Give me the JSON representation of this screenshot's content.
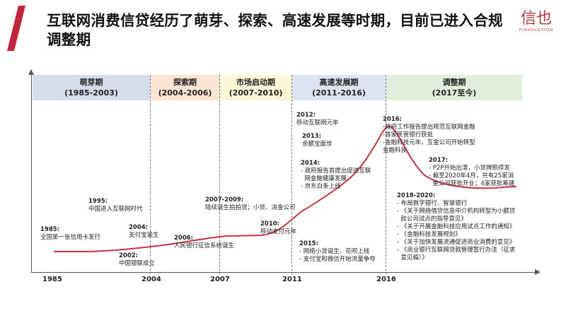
{
  "title": "互联网消费信贷经历了萌芽、探索、高速发展等时期，目前已进入合规调整期",
  "logo": {
    "glyph": "信也",
    "sub": "FINVOLUTION"
  },
  "colors": {
    "accent": "#c0273b",
    "curve": "#c2344a",
    "phase1": "#d4dde9",
    "phase2": "#fbe4d2",
    "phase3": "#fdf5d8",
    "phase4": "#dde3f0",
    "phase5": "#e0eedb"
  },
  "phases": [
    {
      "name": "萌芽期",
      "range": "(1985-2003)"
    },
    {
      "name": "探索期",
      "range": "(2004-2006)"
    },
    {
      "name": "市场启动期",
      "range": "(2007-2010)"
    },
    {
      "name": "高速发展期",
      "range": "(2011-2016)"
    },
    {
      "name": "调整期",
      "range": "(2017至今)"
    }
  ],
  "axis_ticks": [
    "1985",
    "2004",
    "2007",
    "2011",
    "2016"
  ],
  "events": {
    "e1985": {
      "year": "1985:",
      "lines": [
        "全国第一张信用卡发行"
      ]
    },
    "e1995": {
      "year": "1995:",
      "lines": [
        "中国进入互联网时代"
      ]
    },
    "e2002": {
      "year": "2002:",
      "lines": [
        "中国银联成立"
      ]
    },
    "e2004": {
      "year": "2004:",
      "lines": [
        "支付宝诞生"
      ]
    },
    "e2006": {
      "year": "2006:",
      "lines": [
        "人民银行征信系统诞生"
      ]
    },
    "e2007": {
      "year": "2007-2009:",
      "lines": [
        "陆续诞生拍拍贷；小贷、消金公司"
      ]
    },
    "e2010": {
      "year": "2010:",
      "lines": [
        "移动支付元年"
      ]
    },
    "e2012": {
      "year": "2012:",
      "lines": [
        "移动互联网元年"
      ]
    },
    "e2013": {
      "year": "2013:",
      "lines": [
        "余额宝面世"
      ]
    },
    "e2014": {
      "year": "2014:",
      "lines": [
        "- 政府报告首提出促进互联",
        "  网金融健康发展",
        "- 京东白条上线"
      ]
    },
    "e2015": {
      "year": "2015:",
      "lines": [
        "- 网络小贷诞生、花呗上线",
        "- 支付宝和微信开始流量争夺"
      ]
    },
    "e2016": {
      "year": "2016:",
      "lines": [
        "-政府工作报告提出规范互联网金融",
        "-首家民营银行获批",
        "-金融科技元年，互金公司开始转型",
        "金融科技"
      ]
    },
    "e2017": {
      "year": "2017:",
      "lines": [
        "- P2P开始出清，小贷牌照停发",
        "- 截至2020年4月，共有25家消",
        "  金公司获批开业；4家获批筹建"
      ]
    },
    "e2018": {
      "year": "2018-2020:",
      "lines": [
        "- 布局数字银行、智慧银行",
        "- 《关于网络借贷信息中介机构转型为小额贷",
        "  款公司试点的指导意见》",
        "- 《关于开展金融科技应用试点工作的通知》",
        "- 《金融科技发展规划》",
        "- 《关于加快发展流通促进商业消费的意见》",
        "- 《商业银行互联网贷款管理暂行办法（征求",
        "  意见稿）》"
      ]
    }
  }
}
